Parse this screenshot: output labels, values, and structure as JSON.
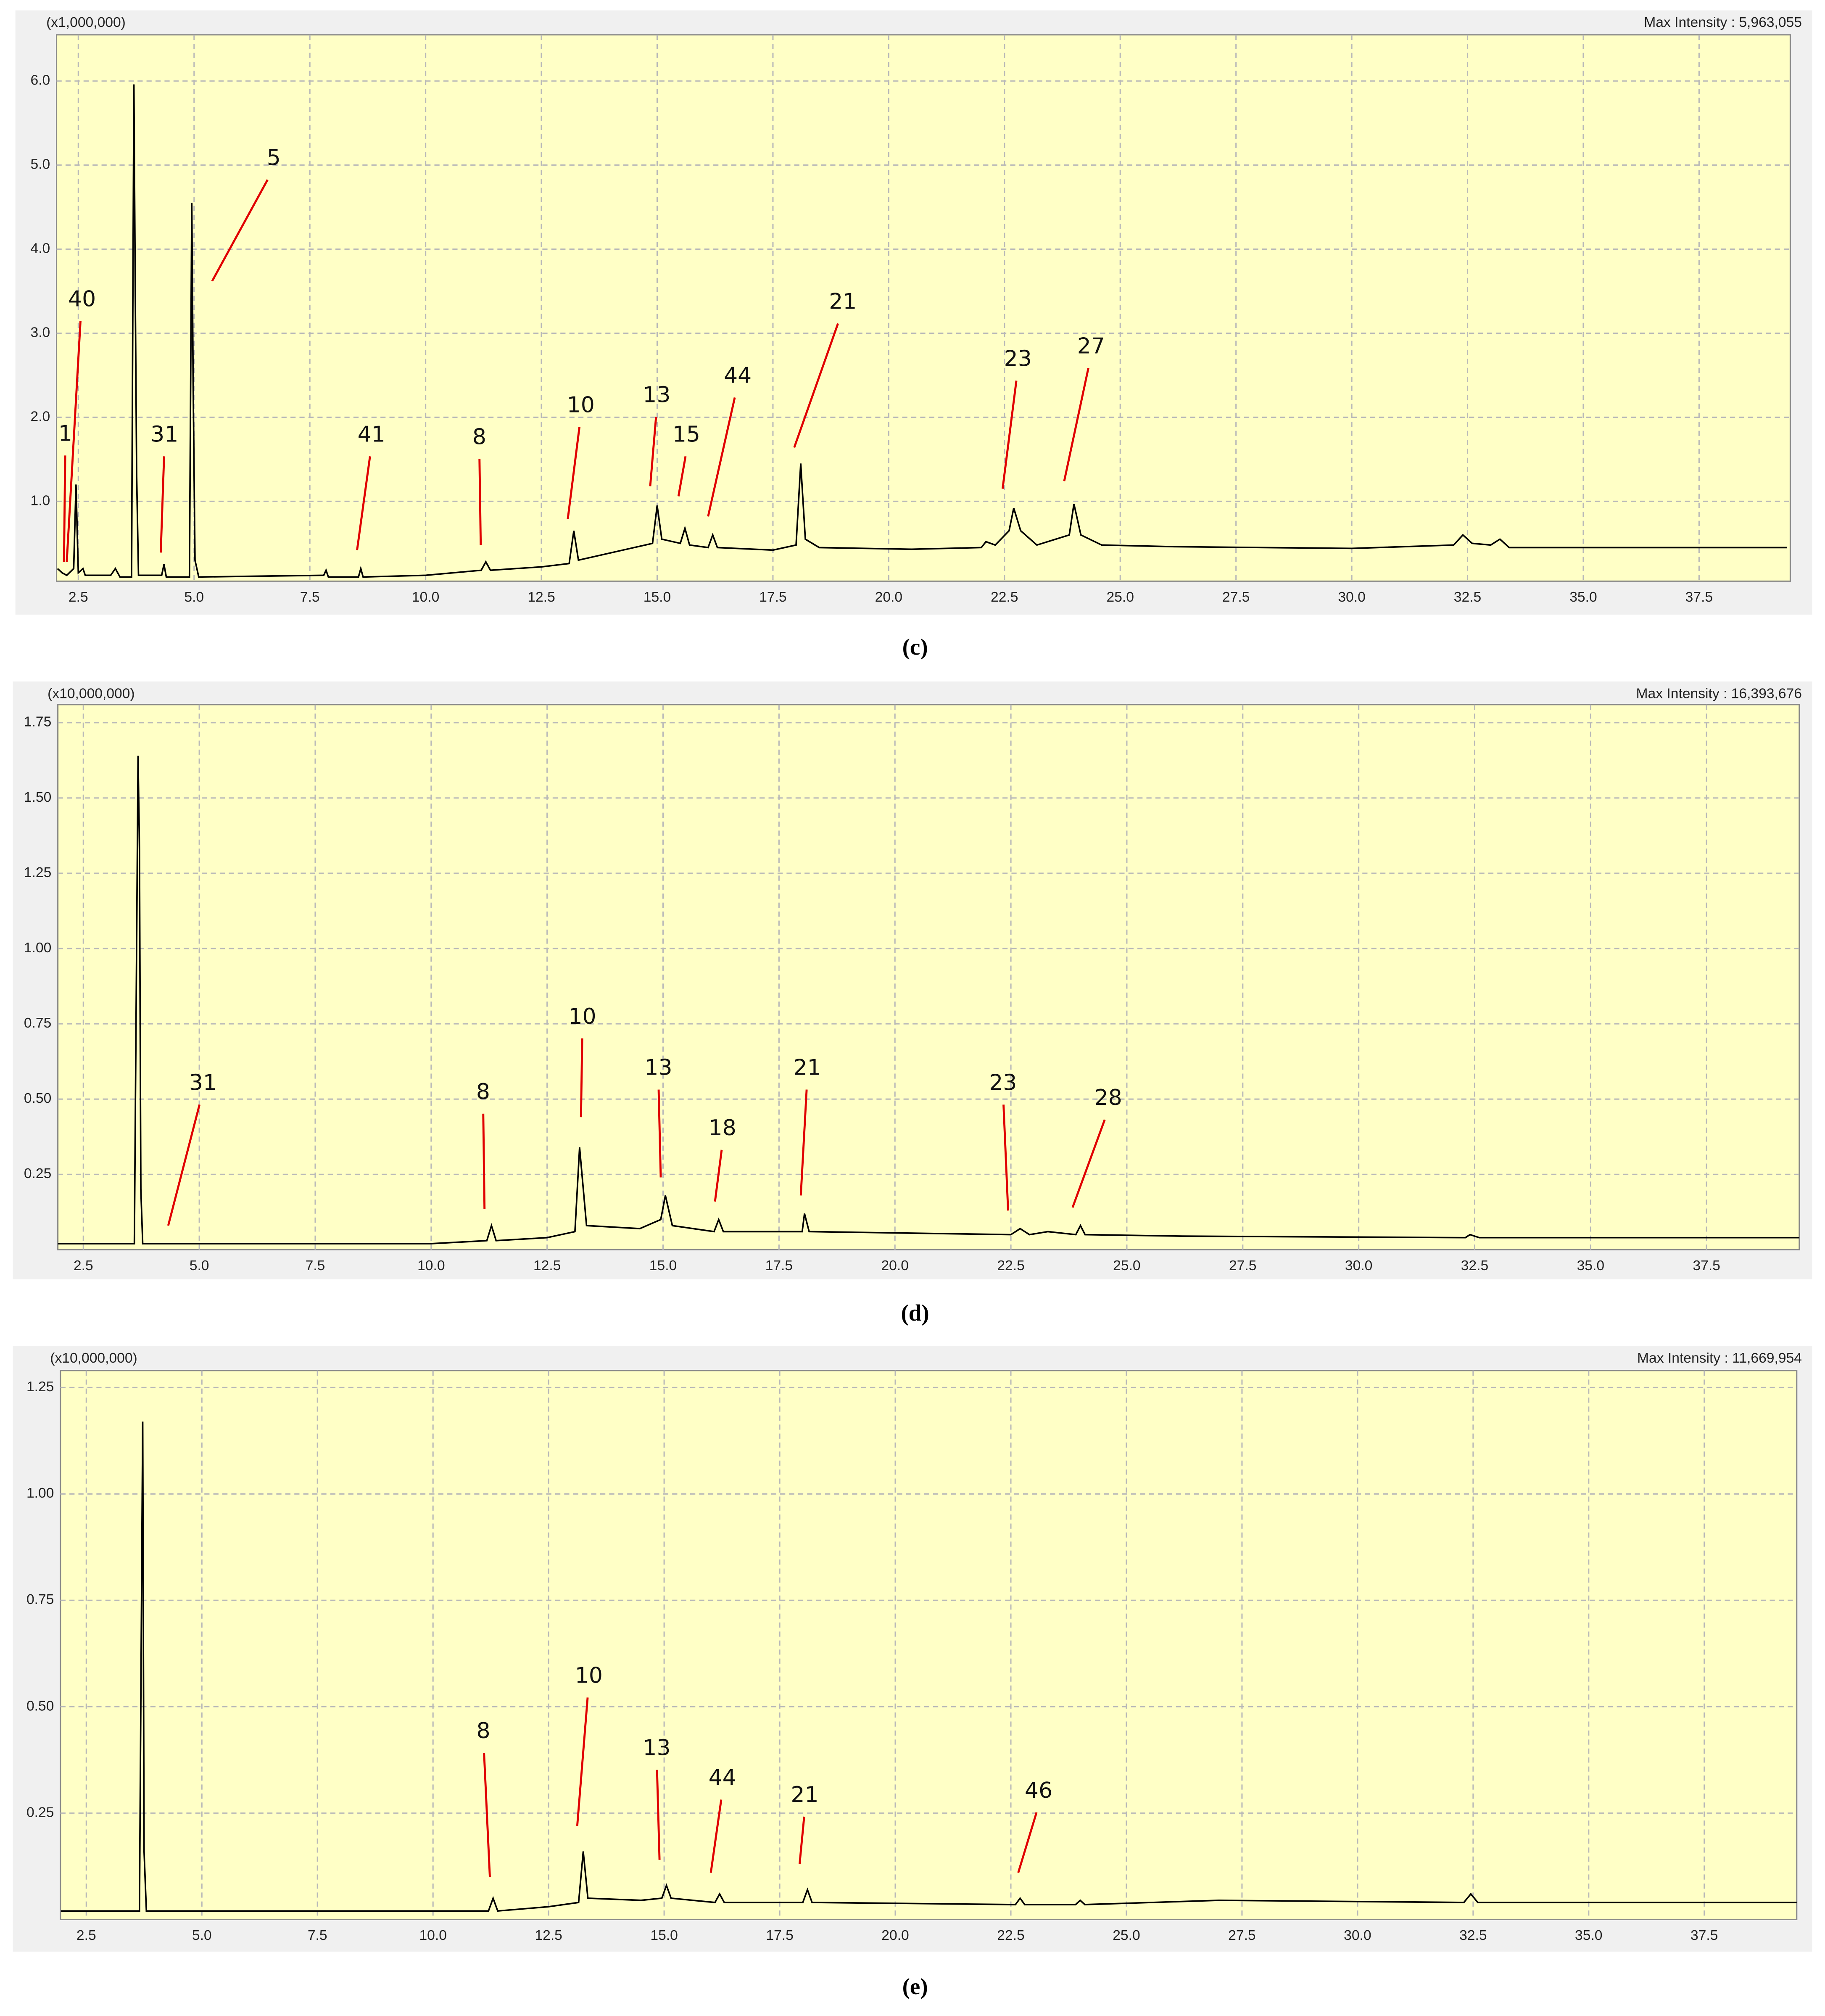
{
  "chart_data": [
    {
      "type": "line",
      "scale_label": "(x1,000,000)",
      "max_intensity": "Max Intensity : 5,963,055",
      "caption": "(c)",
      "color": "#000000",
      "grid": true,
      "xlim": [
        2.03,
        39.47
      ],
      "ylim": [
        0.05,
        6.55
      ],
      "xticks": [
        2.5,
        {
          "value": 5.0,
          "label": "5.0"
        },
        7.5,
        {
          "value": 10.0,
          "label": "10.0"
        },
        12.5,
        {
          "value": 15.0,
          "label": "15.0"
        },
        17.5,
        {
          "value": 20.0,
          "label": "20.0"
        },
        22.5,
        {
          "value": 25.0,
          "label": "25.0"
        },
        27.5,
        {
          "value": 30.0,
          "label": "30.0"
        },
        32.5,
        {
          "value": 35.0,
          "label": "35.0"
        },
        37.5
      ],
      "yticks": [
        {
          "value": 1.0,
          "label": "1.0"
        },
        {
          "value": 2.0,
          "label": "2.0"
        },
        {
          "value": 3.0,
          "label": "3.0"
        },
        {
          "value": 4.0,
          "label": "4.0"
        },
        {
          "value": 5.0,
          "label": "5.0"
        },
        {
          "value": 6.0,
          "label": "6.0"
        }
      ],
      "x": [
        2.05,
        2.15,
        2.25,
        2.4,
        2.45,
        2.5,
        2.6,
        2.65,
        3.2,
        3.3,
        3.4,
        3.65,
        3.7,
        3.73,
        3.76,
        3.8,
        4.3,
        4.35,
        4.4,
        4.9,
        4.95,
        4.98,
        5.02,
        5.1,
        7.8,
        7.85,
        7.9,
        8.55,
        8.6,
        8.65,
        10.0,
        11.2,
        11.3,
        11.4,
        12.5,
        13.1,
        13.2,
        13.3,
        14.5,
        14.9,
        15.0,
        15.1,
        15.5,
        15.6,
        15.7,
        16.1,
        16.2,
        16.3,
        17.5,
        18.0,
        18.1,
        18.2,
        18.5,
        20.5,
        22.0,
        22.1,
        22.3,
        22.6,
        22.7,
        22.85,
        23.2,
        23.9,
        24.0,
        24.15,
        24.6,
        26.2,
        30.0,
        32.2,
        32.4,
        32.6,
        33.0,
        33.2,
        33.4,
        39.4
      ],
      "values": [
        0.2,
        0.15,
        0.12,
        0.2,
        1.2,
        0.15,
        0.2,
        0.12,
        0.12,
        0.2,
        0.1,
        0.1,
        5.96,
        3.5,
        1.3,
        0.12,
        0.12,
        0.25,
        0.1,
        0.1,
        4.55,
        2.4,
        0.3,
        0.1,
        0.12,
        0.18,
        0.1,
        0.1,
        0.2,
        0.1,
        0.12,
        0.18,
        0.28,
        0.18,
        0.22,
        0.26,
        0.65,
        0.3,
        0.45,
        0.5,
        0.95,
        0.55,
        0.5,
        0.68,
        0.48,
        0.45,
        0.6,
        0.45,
        0.42,
        0.48,
        1.45,
        0.55,
        0.45,
        0.43,
        0.45,
        0.52,
        0.48,
        0.65,
        0.92,
        0.65,
        0.48,
        0.6,
        0.97,
        0.6,
        0.48,
        0.46,
        0.44,
        0.48,
        0.6,
        0.5,
        0.48,
        0.55,
        0.45,
        0.45
      ],
      "annotations": [
        {
          "text": "1",
          "x": 2.22,
          "y": 1.79,
          "point_x": 2.19,
          "point_y": 0.28
        },
        {
          "text": "40",
          "x": 2.58,
          "y": 3.39,
          "point_x": 2.25,
          "point_y": 0.28
        },
        {
          "text": "5",
          "x": 6.72,
          "y": 5.07,
          "point_x": 5.39,
          "point_y": 3.62
        },
        {
          "text": "31",
          "x": 4.36,
          "y": 1.78,
          "point_x": 4.28,
          "point_y": 0.39
        },
        {
          "text": "41",
          "x": 8.83,
          "y": 1.78,
          "point_x": 8.52,
          "point_y": 0.42
        },
        {
          "text": "8",
          "x": 11.16,
          "y": 1.75,
          "point_x": 11.19,
          "point_y": 0.48
        },
        {
          "text": "10",
          "x": 13.35,
          "y": 2.13,
          "point_x": 13.07,
          "point_y": 0.79
        },
        {
          "text": "13",
          "x": 14.99,
          "y": 2.25,
          "point_x": 14.85,
          "point_y": 1.18
        },
        {
          "text": "15",
          "x": 15.63,
          "y": 1.78,
          "point_x": 15.46,
          "point_y": 1.06
        },
        {
          "text": "44",
          "x": 16.74,
          "y": 2.48,
          "point_x": 16.1,
          "point_y": 0.82
        },
        {
          "text": "21",
          "x": 19.01,
          "y": 3.36,
          "point_x": 17.96,
          "point_y": 1.64
        },
        {
          "text": "23",
          "x": 22.79,
          "y": 2.68,
          "point_x": 22.46,
          "point_y": 1.15
        },
        {
          "text": "27",
          "x": 24.37,
          "y": 2.83,
          "point_x": 23.79,
          "point_y": 1.24
        }
      ]
    },
    {
      "type": "line",
      "scale_label": "(x10,000,000)",
      "max_intensity": "Max Intensity : 16,393,676",
      "caption": "(d)",
      "color": "#000000",
      "grid": true,
      "xlim": [
        1.95,
        39.5
      ],
      "ylim": [
        0,
        1.81
      ],
      "xticks": [
        2.5,
        {
          "value": 5.0,
          "label": "5.0"
        },
        7.5,
        {
          "value": 10.0,
          "label": "10.0"
        },
        12.5,
        {
          "value": 15.0,
          "label": "15.0"
        },
        17.5,
        {
          "value": 20.0,
          "label": "20.0"
        },
        22.5,
        {
          "value": 25.0,
          "label": "25.0"
        },
        27.5,
        {
          "value": 30.0,
          "label": "30.0"
        },
        32.5,
        {
          "value": 35.0,
          "label": "35.0"
        },
        37.5
      ],
      "yticks": [
        0.25,
        {
          "value": 0.5,
          "label": "0.50"
        },
        0.75,
        {
          "value": 1.0,
          "label": "1.00"
        },
        1.25,
        {
          "value": 1.5,
          "label": "1.50"
        },
        1.75
      ],
      "x": [
        1.95,
        3.6,
        3.68,
        3.71,
        3.74,
        3.78,
        4.3,
        6.0,
        10.0,
        11.2,
        11.3,
        11.4,
        12.5,
        13.1,
        13.2,
        13.35,
        14.5,
        14.95,
        15.05,
        15.2,
        16.1,
        16.2,
        16.3,
        18.0,
        18.05,
        18.15,
        22.5,
        22.7,
        22.9,
        23.3,
        23.9,
        24.0,
        24.1,
        26.2,
        32.3,
        32.4,
        32.6,
        39.5
      ],
      "values": [
        0.02,
        0.02,
        1.64,
        1.33,
        0.2,
        0.02,
        0.02,
        0.02,
        0.02,
        0.03,
        0.08,
        0.03,
        0.04,
        0.06,
        0.34,
        0.08,
        0.07,
        0.1,
        0.18,
        0.08,
        0.06,
        0.1,
        0.06,
        0.06,
        0.12,
        0.06,
        0.05,
        0.07,
        0.05,
        0.06,
        0.05,
        0.08,
        0.05,
        0.045,
        0.04,
        0.05,
        0.04,
        0.04
      ],
      "annotations": [
        {
          "text": "31",
          "x": 5.08,
          "y": 0.55,
          "point_x": 4.33,
          "point_y": 0.08
        },
        {
          "text": "8",
          "x": 11.12,
          "y": 0.52,
          "point_x": 11.15,
          "point_y": 0.135
        },
        {
          "text": "10",
          "x": 13.26,
          "y": 0.77,
          "point_x": 13.23,
          "point_y": 0.44
        },
        {
          "text": "13",
          "x": 14.9,
          "y": 0.6,
          "point_x": 14.95,
          "point_y": 0.24
        },
        {
          "text": "18",
          "x": 16.28,
          "y": 0.4,
          "point_x": 16.12,
          "point_y": 0.16
        },
        {
          "text": "21",
          "x": 18.11,
          "y": 0.6,
          "point_x": 17.97,
          "point_y": 0.18
        },
        {
          "text": "23",
          "x": 22.33,
          "y": 0.55,
          "point_x": 22.44,
          "point_y": 0.13
        },
        {
          "text": "28",
          "x": 24.6,
          "y": 0.5,
          "point_x": 23.83,
          "point_y": 0.14
        }
      ]
    },
    {
      "type": "line",
      "scale_label": "(x10,000,000)",
      "max_intensity": "Max Intensity : 11,669,954",
      "caption": "(e)",
      "color": "#000000",
      "grid": true,
      "xlim": [
        1.94,
        39.5
      ],
      "ylim": [
        0,
        1.29
      ],
      "xticks": [
        2.5,
        {
          "value": 5.0,
          "label": "5.0"
        },
        7.5,
        {
          "value": 10.0,
          "label": "10.0"
        },
        12.5,
        {
          "value": 15.0,
          "label": "15.0"
        },
        17.5,
        {
          "value": 20.0,
          "label": "20.0"
        },
        22.5,
        {
          "value": 25.0,
          "label": "25.0"
        },
        27.5,
        {
          "value": 30.0,
          "label": "30.0"
        },
        32.5,
        {
          "value": 35.0,
          "label": "35.0"
        },
        37.5
      ],
      "yticks": [
        0.25,
        {
          "value": 0.5,
          "label": "0.50"
        },
        0.75,
        {
          "value": 1.0,
          "label": "1.00"
        },
        1.25
      ],
      "x": [
        1.95,
        3.65,
        3.72,
        3.75,
        3.8,
        10.0,
        11.2,
        11.3,
        11.4,
        12.5,
        13.15,
        13.25,
        13.35,
        14.5,
        14.95,
        15.05,
        15.15,
        16.1,
        16.2,
        16.3,
        18.0,
        18.1,
        18.2,
        22.6,
        22.7,
        22.8,
        23.9,
        24.0,
        24.1,
        27.0,
        32.3,
        32.45,
        32.6,
        39.5
      ],
      "values": [
        0.02,
        0.02,
        1.17,
        0.16,
        0.02,
        0.02,
        0.02,
        0.05,
        0.02,
        0.03,
        0.04,
        0.16,
        0.05,
        0.045,
        0.05,
        0.08,
        0.05,
        0.04,
        0.06,
        0.04,
        0.04,
        0.07,
        0.04,
        0.035,
        0.05,
        0.035,
        0.035,
        0.045,
        0.035,
        0.045,
        0.04,
        0.06,
        0.04,
        0.04
      ],
      "annotations": [
        {
          "text": "8",
          "x": 11.09,
          "y": 0.44,
          "point_x": 11.23,
          "point_y": 0.1
        },
        {
          "text": "10",
          "x": 13.37,
          "y": 0.57,
          "point_x": 13.12,
          "point_y": 0.22
        },
        {
          "text": "13",
          "x": 14.84,
          "y": 0.4,
          "point_x": 14.9,
          "point_y": 0.14
        },
        {
          "text": "44",
          "x": 16.26,
          "y": 0.33,
          "point_x": 16.01,
          "point_y": 0.11
        },
        {
          "text": "21",
          "x": 18.04,
          "y": 0.29,
          "point_x": 17.93,
          "point_y": 0.13
        },
        {
          "text": "46",
          "x": 23.1,
          "y": 0.3,
          "point_x": 22.66,
          "point_y": 0.11
        }
      ]
    }
  ]
}
